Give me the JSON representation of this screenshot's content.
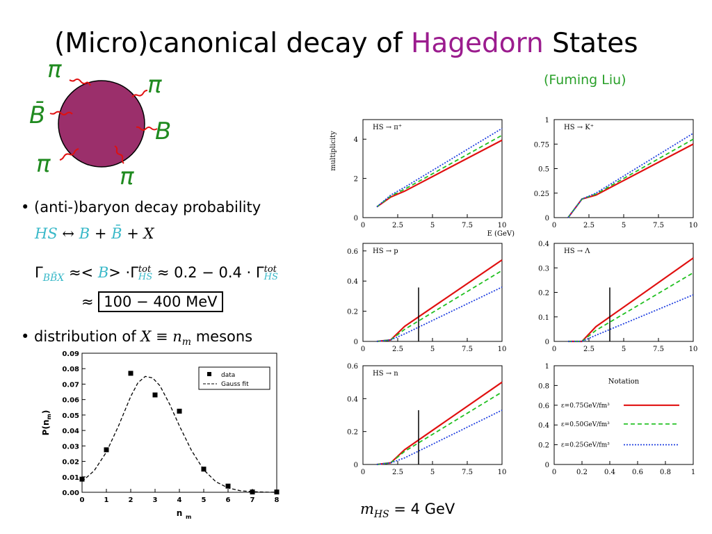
{
  "slide": {
    "title_pre": "(Micro)canonical decay of ",
    "title_hl": "Hagedorn",
    "title_post": " States",
    "author": "(Fuming Liu)"
  },
  "decay_diagram": {
    "labels": [
      "π",
      "π",
      "B̄",
      "B",
      "π",
      "π"
    ],
    "colors": {
      "blob": "#9b2f6b",
      "squiggle": "#e01010",
      "label": "#1f8a1f"
    }
  },
  "bullets": {
    "b1": "• (anti-)baryon decay probability",
    "reaction": [
      "HS",
      "↔",
      "B",
      "+",
      "B̄",
      "+",
      "X"
    ],
    "gamma_line": [
      "Γ",
      "BB̄X",
      "≈<",
      "B",
      "> ·Γ",
      "tot",
      "HS",
      "≈ 0.2 − 0.4 · Γ",
      "tot",
      "HS"
    ],
    "approx": "≈",
    "boxed": "100 − 400 MeV",
    "b2_pre": "• distribution of ",
    "b2_math": "X ≡ n",
    "b2_sub": "m",
    "b2_post": " mesons",
    "mass_note_math": "m",
    "mass_note_sub": "HS",
    "mass_note_rest": " = 4  GeV"
  },
  "chart_data": [
    {
      "type": "scatter",
      "title": "",
      "xlabel": "n_m",
      "ylabel": "P(n_m)",
      "xlim": [
        0,
        8
      ],
      "ylim": [
        0,
        0.09
      ],
      "xticks": [
        "0",
        "1",
        "2",
        "3",
        "4",
        "5",
        "6",
        "7",
        "8"
      ],
      "yticks": [
        "0.00",
        "0.01",
        "0.02",
        "0.03",
        "0.04",
        "0.05",
        "0.06",
        "0.07",
        "0.08",
        "0.09"
      ],
      "legend": [
        "data",
        "Gauss fit"
      ],
      "legend_position": "top-right",
      "series": [
        {
          "name": "data",
          "x": [
            0,
            1,
            2,
            3,
            4,
            5,
            6,
            7,
            8
          ],
          "values": [
            0.0085,
            0.0275,
            0.077,
            0.063,
            0.0525,
            0.015,
            0.004,
            0.0002,
            0.0002
          ]
        },
        {
          "name": "Gauss fit",
          "x": [
            0,
            0.5,
            1,
            1.5,
            2,
            2.3,
            2.6,
            2.9,
            3.2,
            3.6,
            4,
            4.5,
            5,
            5.5,
            6,
            6.5,
            7,
            7.5,
            8
          ],
          "values": [
            0.007,
            0.014,
            0.026,
            0.043,
            0.062,
            0.071,
            0.075,
            0.074,
            0.069,
            0.057,
            0.043,
            0.027,
            0.0145,
            0.0068,
            0.0028,
            0.001,
            0.0004,
            0.0001,
            0.0
          ]
        }
      ]
    },
    {
      "type": "line",
      "label": "HS → π⁺",
      "ylabel": "multiplicity",
      "xlabel": "E (GeV)",
      "xlim": [
        0,
        10
      ],
      "ylim": [
        0,
        5
      ],
      "xticks": [
        "0",
        "2.5",
        "5",
        "7.5",
        "10"
      ],
      "yticks": [
        "0",
        "2",
        "4"
      ],
      "series": [
        {
          "name": "ε=0.75GeV/fm³",
          "x": [
            1,
            2,
            3,
            10
          ],
          "values": [
            0.55,
            1.05,
            1.35,
            3.95
          ]
        },
        {
          "name": "ε=0.50GeV/fm³",
          "x": [
            1,
            2,
            3,
            10
          ],
          "values": [
            0.55,
            1.1,
            1.45,
            4.2
          ]
        },
        {
          "name": "ε=0.25GeV/fm³",
          "x": [
            1,
            2,
            3,
            10
          ],
          "values": [
            0.55,
            1.15,
            1.55,
            4.55
          ]
        }
      ]
    },
    {
      "type": "line",
      "label": "HS → K⁺",
      "xlim": [
        0,
        10
      ],
      "ylim": [
        0,
        1
      ],
      "xticks": [
        "0",
        "2.5",
        "5",
        "7.5",
        "10"
      ],
      "yticks": [
        "0",
        "0.25",
        "0.5",
        "0.75",
        "1"
      ],
      "series": [
        {
          "name": "ε=0.75GeV/fm³",
          "x": [
            1,
            2,
            3,
            10
          ],
          "values": [
            0.0,
            0.19,
            0.23,
            0.75
          ]
        },
        {
          "name": "ε=0.50GeV/fm³",
          "x": [
            1,
            2,
            3,
            10
          ],
          "values": [
            0.0,
            0.19,
            0.24,
            0.8
          ]
        },
        {
          "name": "ε=0.25GeV/fm³",
          "x": [
            1,
            2,
            3,
            10
          ],
          "values": [
            0.0,
            0.19,
            0.25,
            0.86
          ]
        }
      ]
    },
    {
      "type": "line",
      "label": "HS → p",
      "xlim": [
        0,
        10
      ],
      "ylim": [
        0,
        0.65
      ],
      "xticks": [
        "0",
        "2.5",
        "5",
        "7.5",
        "10"
      ],
      "yticks": [
        "0",
        "0.2",
        "0.4",
        "0.6"
      ],
      "vline": 4,
      "series": [
        {
          "name": "ε=0.75GeV/fm³",
          "x": [
            1,
            2,
            3,
            10
          ],
          "values": [
            0.0,
            0.01,
            0.1,
            0.54
          ]
        },
        {
          "name": "ε=0.50GeV/fm³",
          "x": [
            1,
            2,
            3,
            10
          ],
          "values": [
            0.0,
            0.01,
            0.08,
            0.47
          ]
        },
        {
          "name": "ε=0.25GeV/fm³",
          "x": [
            1,
            2,
            3,
            10
          ],
          "values": [
            0.0,
            0.01,
            0.05,
            0.36
          ]
        }
      ]
    },
    {
      "type": "line",
      "label": "HS → Λ",
      "xlim": [
        0,
        10
      ],
      "ylim": [
        0,
        0.4
      ],
      "xticks": [
        "0",
        "2.5",
        "5",
        "7.5",
        "10"
      ],
      "yticks": [
        "0",
        "0.1",
        "0.2",
        "0.3",
        "0.4"
      ],
      "vline": 4,
      "series": [
        {
          "name": "ε=0.75GeV/fm³",
          "x": [
            1,
            2,
            3,
            10
          ],
          "values": [
            0.0,
            0.0,
            0.06,
            0.34
          ]
        },
        {
          "name": "ε=0.50GeV/fm³",
          "x": [
            1,
            2,
            3,
            10
          ],
          "values": [
            0.0,
            0.0,
            0.045,
            0.28
          ]
        },
        {
          "name": "ε=0.25GeV/fm³",
          "x": [
            1,
            2,
            3,
            10
          ],
          "values": [
            0.0,
            0.0,
            0.025,
            0.19
          ]
        }
      ]
    },
    {
      "type": "line",
      "label": "HS → n",
      "xlim": [
        0,
        10
      ],
      "ylim": [
        0,
        0.6
      ],
      "xticks": [
        "0",
        "2.5",
        "5",
        "7.5",
        "10"
      ],
      "yticks": [
        "0",
        "0.2",
        "0.4",
        "0.6"
      ],
      "vline": 4,
      "series": [
        {
          "name": "ε=0.75GeV/fm³",
          "x": [
            1,
            2,
            3,
            10
          ],
          "values": [
            0.0,
            0.01,
            0.09,
            0.5
          ]
        },
        {
          "name": "ε=0.50GeV/fm³",
          "x": [
            1,
            2,
            3,
            10
          ],
          "values": [
            0.0,
            0.01,
            0.08,
            0.44
          ]
        },
        {
          "name": "ε=0.25GeV/fm³",
          "x": [
            1,
            2,
            3,
            10
          ],
          "values": [
            0.0,
            0.01,
            0.04,
            0.33
          ]
        }
      ]
    },
    {
      "type": "legend-panel",
      "label": "Notation",
      "xlim": [
        0,
        1
      ],
      "ylim": [
        0,
        1
      ],
      "xticks": [
        "0",
        "0.2",
        "0.4",
        "0.6",
        "0.8",
        "1"
      ],
      "yticks": [
        "0",
        "0.2",
        "0.4",
        "0.6",
        "0.8",
        "1"
      ],
      "entries": [
        "ε=0.75GeV/fm³",
        "ε=0.50GeV/fm³",
        "ε=0.25GeV/fm³"
      ],
      "colors": [
        "#e01010",
        "#20c020",
        "#2040e0"
      ]
    }
  ]
}
